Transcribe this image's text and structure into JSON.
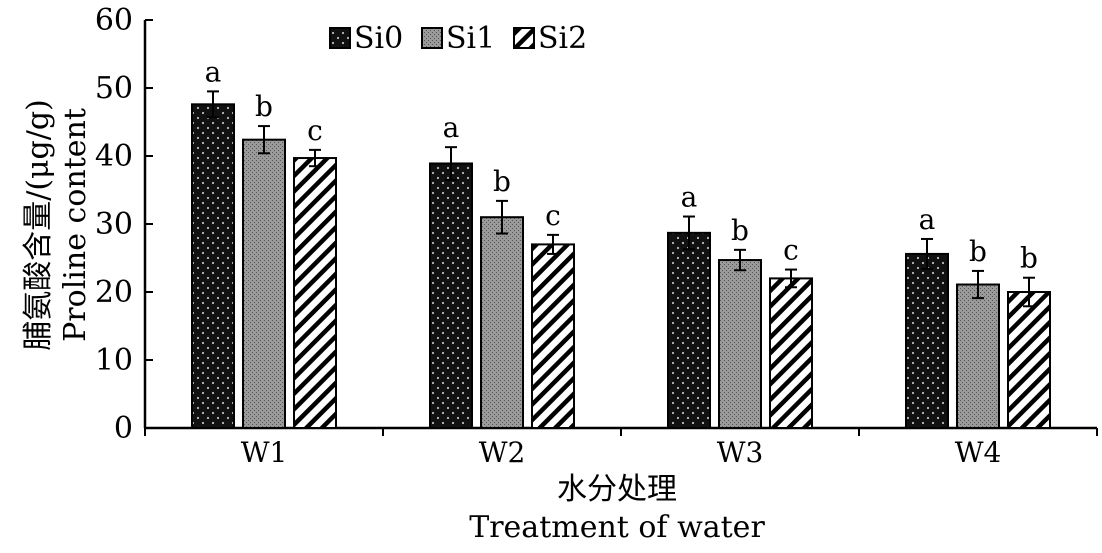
{
  "chart_data": {
    "type": "bar",
    "categories": [
      "W1",
      "W2",
      "W3",
      "W4"
    ],
    "series": [
      {
        "name": "Si0",
        "values": [
          47.6,
          38.9,
          28.7,
          25.6
        ],
        "errors": [
          1.9,
          2.4,
          2.4,
          2.2
        ],
        "letters": [
          "a",
          "a",
          "a",
          "a"
        ],
        "pattern": "dots"
      },
      {
        "name": "Si1",
        "values": [
          42.4,
          31.0,
          24.7,
          21.1
        ],
        "errors": [
          2.0,
          2.4,
          1.5,
          2.0
        ],
        "letters": [
          "b",
          "b",
          "b",
          "b"
        ],
        "pattern": "stipple"
      },
      {
        "name": "Si2",
        "values": [
          39.7,
          27.0,
          22.0,
          20.0
        ],
        "errors": [
          1.2,
          1.4,
          1.3,
          2.1
        ],
        "letters": [
          "c",
          "c",
          "c",
          "b"
        ],
        "pattern": "hatch"
      }
    ],
    "xlabel_cn": "水分处理",
    "xlabel_en": "Treatment of water",
    "ylabel_cn": "脯氨酸含量/(μg/g)",
    "ylabel_en": "Proline content",
    "ylim": [
      0,
      60
    ],
    "yticks": [
      0,
      10,
      20,
      30,
      40,
      50,
      60
    ],
    "legend_position": "top-left",
    "grid": false
  }
}
